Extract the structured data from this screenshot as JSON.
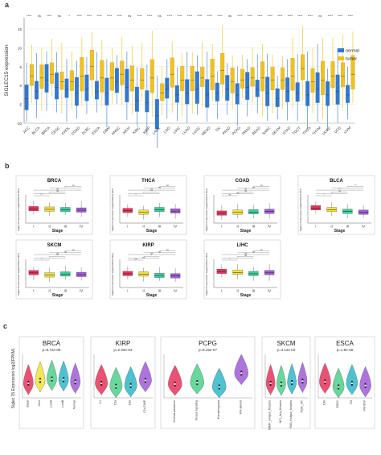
{
  "panels": {
    "a": {
      "label": "a",
      "chart_data": {
        "type": "boxplot",
        "ylabel": "SIGLEC15 expression",
        "ylim": [
          -10,
          18
        ],
        "yticks": [
          -10,
          -5,
          0,
          5,
          10,
          15
        ],
        "legend": {
          "placement": "right",
          "entries": [
            "normal",
            "tumor"
          ]
        },
        "colors": {
          "normal": "#2e78d2",
          "tumor": "#f2c21b"
        },
        "categories": [
          "ACC",
          "BLCA",
          "BRCA",
          "CESC",
          "CHOL",
          "COAD",
          "DLBC",
          "ESCA",
          "GBM",
          "HNSC",
          "KICH",
          "KIRC",
          "KIRP",
          "LAML",
          "LGG",
          "LIHC",
          "LUAD",
          "LUSC",
          "MESO",
          "OV",
          "PAAD",
          "PCPG",
          "PRAD",
          "READ",
          "SARC",
          "SKCM",
          "STAD",
          "TGCT",
          "THCA",
          "THYM",
          "UCEC",
          "UCS",
          "UVM"
        ],
        "significance": [
          "****",
          "ns",
          "****",
          "ns",
          "*",
          "****",
          "****",
          "****",
          "****",
          "****",
          "ns",
          "****",
          "****",
          "ns",
          "****",
          "****",
          "****",
          "****",
          "****",
          "****",
          "ns",
          "****",
          "****",
          "****",
          "****",
          "****",
          "****",
          "****",
          "****",
          "ns",
          "****",
          "****",
          "****"
        ],
        "series": [
          {
            "name": "normal",
            "medians": [
              -3.5,
              -1.5,
              1.5,
              -0.5,
              -1.0,
              -2.0,
              -1.0,
              -1.5,
              -2.0,
              1.0,
              -0.5,
              -4.0,
              -4.5,
              -8.0,
              -1.0,
              -2.5,
              -2.0,
              -1.0,
              -2.5,
              -2.0,
              -1.0,
              -2.5,
              -0.5,
              -1.0,
              -2.0,
              -3.5,
              -1.5,
              -2.0,
              -2.5,
              -1.0,
              -2.5,
              -1.5,
              -2.5
            ]
          },
          {
            "name": "tumor",
            "medians": [
              2.5,
              2.0,
              3.0,
              1.0,
              1.0,
              2.5,
              5.0,
              2.0,
              2.0,
              3.0,
              1.5,
              1.5,
              2.0,
              -2.0,
              3.0,
              1.5,
              1.5,
              2.0,
              2.5,
              4.0,
              1.0,
              1.5,
              2.0,
              2.0,
              1.5,
              1.5,
              2.5,
              4.5,
              1.0,
              1.5,
              2.5,
              2.5,
              3.0
            ]
          }
        ]
      }
    },
    "b": {
      "label": "b",
      "ylabel": "Siglec15 expression log2(FPKM+0.001)",
      "xlabel": "Stage",
      "stages": [
        "I",
        "II",
        "III",
        "IV"
      ],
      "stage_colors": [
        "#e8325b",
        "#f2e23a",
        "#3bcf9c",
        "#a05cd6"
      ],
      "chart_data": [
        {
          "type": "boxplot",
          "title": "BRCA",
          "medians": [
            -2.8,
            -2.9,
            -3.0,
            -3.1
          ],
          "annotations": [
            "***",
            "*",
            "ns",
            "ns",
            "**",
            "ns"
          ]
        },
        {
          "type": "boxplot",
          "title": "THCA",
          "medians": [
            -3.2,
            -3.6,
            -3.0,
            -3.3
          ],
          "annotations": [
            "**",
            "*",
            "***",
            "ns",
            "ns",
            "ns"
          ]
        },
        {
          "type": "boxplot",
          "title": "COAD",
          "medians": [
            -3.8,
            -3.6,
            -3.5,
            -3.4
          ],
          "annotations": [
            "ns",
            "ns",
            "ns",
            "ns",
            "ns",
            "ns"
          ]
        },
        {
          "type": "boxplot",
          "title": "BLCA",
          "medians": [
            -2.6,
            -3.0,
            -3.4,
            -3.6
          ],
          "annotations": [
            "*",
            "**",
            "ns",
            "****",
            "*",
            "**"
          ]
        },
        {
          "type": "boxplot",
          "title": "SKCM",
          "medians": [
            -2.7,
            -3.2,
            -3.0,
            -3.1
          ],
          "annotations": [
            "**",
            "*",
            "***",
            "ns",
            "ns",
            "ns"
          ]
        },
        {
          "type": "boxplot",
          "title": "KIRP",
          "medians": [
            -2.9,
            -3.0,
            -3.3,
            -3.4
          ],
          "annotations": [
            "ns",
            "ns",
            "*",
            "ns",
            "ns",
            "ns"
          ]
        },
        {
          "type": "boxplot",
          "title": "LIHC",
          "medians": [
            -2.4,
            -2.6,
            -2.9,
            -2.7
          ],
          "annotations": [
            "**",
            "*",
            "ns",
            "ns",
            "ns",
            "ns"
          ]
        }
      ]
    },
    "c": {
      "label": "c",
      "ylabel": "Siglec 15 Expression log2(FPKM)",
      "chart_data": [
        {
          "type": "violin",
          "title": "BRCA",
          "pvalue": "p=8.72e-88",
          "categories": [
            "Basal",
            "Her2",
            "LumA",
            "LumB",
            "Normal"
          ],
          "colors": [
            "#e8325b",
            "#f2e23a",
            "#4dd08a",
            "#2fb7c9",
            "#a05cd6"
          ],
          "medians": [
            -1.0,
            -0.6,
            -0.4,
            -0.5,
            -0.8
          ]
        },
        {
          "type": "violin",
          "title": "KIRP",
          "pvalue": "p=2.93e-03",
          "categories": [
            "C1",
            "C2a",
            "C2b",
            "C2c-CIMP"
          ],
          "colors": [
            "#e8325b",
            "#4dd08a",
            "#2fb7c9",
            "#a05cd6"
          ],
          "medians": [
            -1.0,
            -1.4,
            -1.3,
            -0.6
          ]
        },
        {
          "type": "violin",
          "title": "PCPG",
          "pvalue": "p=8.15e-07",
          "categories": [
            "Cortical admixture",
            "Kinase signaling",
            "Pseudohypoxia",
            "Wnt-altered"
          ],
          "colors": [
            "#e8325b",
            "#4dd08a",
            "#2fb7c9",
            "#a05cd6"
          ],
          "medians": [
            -1.1,
            -0.9,
            -1.5,
            0.4
          ]
        },
        {
          "type": "violin",
          "title": "SKCM",
          "pvalue": "p=3.12e-02",
          "categories": [
            "BRAF_Hotspot_Mutants",
            "NF1_Any_Mutants",
            "RAS_Hotspot_Mutants",
            "Triple_WT"
          ],
          "colors": [
            "#e8325b",
            "#4dd08a",
            "#2fb7c9",
            "#a05cd6"
          ],
          "medians": [
            -1.0,
            -1.1,
            -0.9,
            -0.7
          ]
        },
        {
          "type": "violin",
          "title": "ESCA",
          "pvalue": "p=1.8e-08",
          "categories": [
            "CIN",
            "ESCC",
            "GS",
            "HM-SNV"
          ],
          "colors": [
            "#e8325b",
            "#4dd08a",
            "#2fb7c9",
            "#a05cd6"
          ],
          "medians": [
            -0.8,
            -1.5,
            -1.0,
            -1.3
          ]
        }
      ]
    }
  }
}
